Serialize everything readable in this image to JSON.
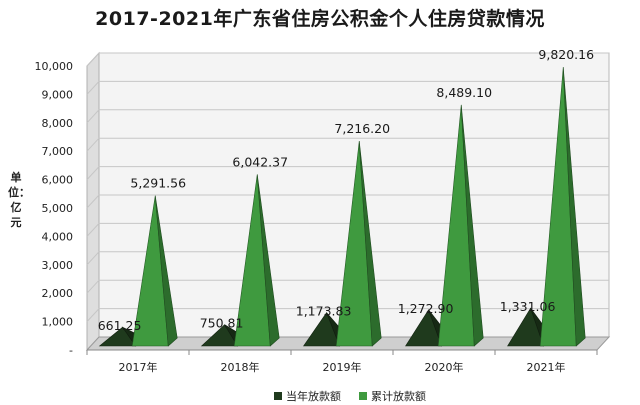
{
  "chart_data": {
    "type": "bar",
    "title": "2017-2021年广东省住房公积金个人住房贷款情况",
    "ylabel": "单位：亿元",
    "xlabel": "",
    "categories": [
      "2017年",
      "2018年",
      "2019年",
      "2020年",
      "2021年"
    ],
    "ylim": [
      0,
      10000
    ],
    "yticks": [
      "-",
      "1,000",
      "2,000",
      "3,000",
      "4,000",
      "5,000",
      "6,000",
      "7,000",
      "8,000",
      "9,000",
      "10,000"
    ],
    "series": [
      {
        "name": "当年放款额",
        "color": "#1f3a1d",
        "values": [
          661.25,
          750.81,
          1173.83,
          1272.9,
          1331.06
        ],
        "labels": [
          "661.25",
          "750.81",
          "1,173.83",
          "1,272.90",
          "1,331.06"
        ]
      },
      {
        "name": "累计放款额",
        "color": "#3f9a3f",
        "values": [
          5291.56,
          6042.37,
          7216.2,
          8489.1,
          9820.16
        ],
        "labels": [
          "5,291.56",
          "6,042.37",
          "7,216.20",
          "8,489.10",
          "9,820.16"
        ]
      }
    ],
    "grid": true,
    "legend_position": "bottom"
  }
}
